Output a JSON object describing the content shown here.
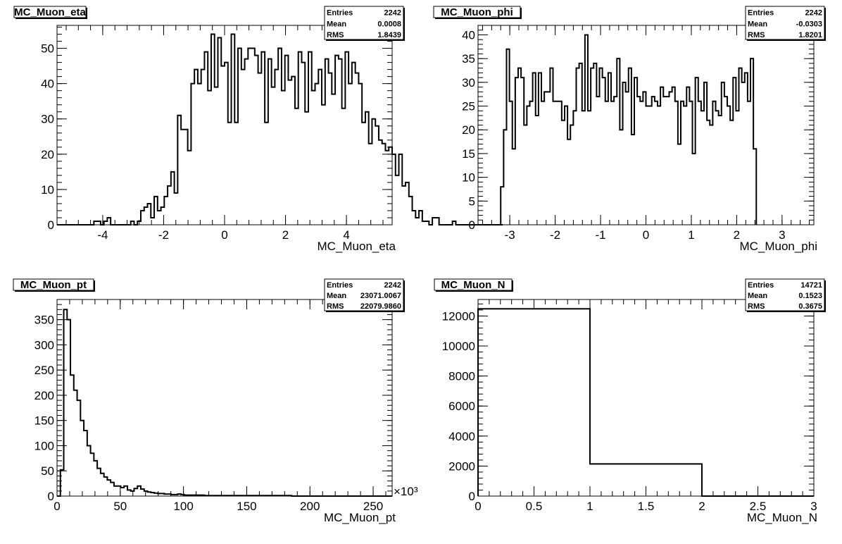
{
  "chart_data": [
    {
      "type": "histogram",
      "title": "MC_Muon_eta",
      "xlabel": "MC_Muon_eta",
      "xlim": [
        -5.5,
        5.5
      ],
      "ylim": [
        0,
        56.5
      ],
      "xticks": [
        -4,
        -2,
        0,
        2,
        4
      ],
      "yticks": [
        0,
        10,
        20,
        30,
        40,
        50
      ],
      "x_minor_step": 0.4,
      "y_minor_step": 2,
      "bin_start": -5.5,
      "bin_width": 0.11,
      "values": [
        0,
        0,
        0,
        0,
        0,
        0,
        0,
        0,
        0,
        0,
        0,
        1,
        1,
        0,
        1,
        2,
        0,
        0,
        0,
        0,
        0,
        0,
        1,
        0,
        1,
        4,
        5,
        6,
        2,
        8,
        4,
        5,
        8,
        11,
        15,
        9,
        31,
        27,
        27,
        21,
        40,
        44,
        40,
        44,
        49,
        38,
        54,
        39,
        53,
        45,
        46,
        29,
        54,
        29,
        50,
        44,
        47,
        50,
        50,
        48,
        43,
        49,
        29,
        47,
        39,
        44,
        50,
        38,
        48,
        41,
        42,
        33,
        49,
        46,
        32,
        49,
        38,
        40,
        44,
        34,
        47,
        43,
        37,
        48,
        47,
        33,
        49,
        40,
        46,
        43,
        40,
        29,
        32,
        23,
        30,
        28,
        24,
        23,
        21,
        22,
        20,
        14,
        20,
        11,
        12,
        8,
        4,
        2,
        4,
        1,
        1,
        0,
        2,
        2,
        0,
        0,
        0,
        0,
        1,
        0,
        0,
        0,
        0,
        0,
        0,
        0,
        0,
        0,
        0,
        0,
        0,
        0,
        0
      ],
      "stats": [
        {
          "label": "Entries",
          "value": "2242"
        },
        {
          "label": "Mean",
          "value": "0.0008"
        },
        {
          "label": "RMS",
          "value": "1.8439"
        }
      ]
    },
    {
      "type": "histogram",
      "title": "MC_Muon_phi",
      "xlabel": "MC_Muon_phi",
      "xlim": [
        -3.7,
        3.7
      ],
      "ylim": [
        0,
        42
      ],
      "xticks": [
        -3,
        -2,
        -1,
        0,
        1,
        2,
        3
      ],
      "yticks": [
        0,
        5,
        10,
        15,
        20,
        25,
        30,
        35,
        40
      ],
      "x_minor_step": 0.2,
      "y_minor_step": 1,
      "bin_start": -3.2,
      "bin_width": 0.064,
      "values": [
        8,
        20,
        37,
        26,
        16,
        31,
        33,
        31,
        21,
        25,
        26,
        32,
        23,
        32,
        26,
        28,
        28,
        33,
        26,
        26,
        26,
        22,
        25,
        18,
        21,
        24,
        33,
        34,
        24,
        40,
        24,
        33,
        34,
        27,
        33,
        31,
        26,
        32,
        26,
        27,
        35,
        20,
        30,
        28,
        33,
        19,
        31,
        27,
        26,
        28,
        25,
        25,
        27,
        26,
        25,
        29,
        27,
        27,
        28,
        29,
        26,
        17,
        26,
        25,
        29,
        26,
        15,
        31,
        26,
        24,
        30,
        22,
        21,
        26,
        24,
        23,
        30,
        27,
        25,
        22,
        31,
        24,
        33,
        30,
        32,
        26,
        35,
        16
      ],
      "stats": [
        {
          "label": "Entries",
          "value": "2242"
        },
        {
          "label": "Mean",
          "value": "-0.0303"
        },
        {
          "label": "RMS",
          "value": "1.8201"
        }
      ]
    },
    {
      "type": "histogram",
      "title": "MC_Muon_pt",
      "xlabel": "MC_Muon_pt",
      "x_exponent_label": "×10³",
      "xlim": [
        0,
        265
      ],
      "ylim": [
        0,
        390
      ],
      "xticks": [
        0,
        50,
        100,
        150,
        200,
        250
      ],
      "yticks": [
        0,
        50,
        100,
        150,
        200,
        250,
        300,
        350
      ],
      "x_minor_step": 10,
      "y_minor_step": 10,
      "bin_start": 0,
      "bin_width": 2.65,
      "values": [
        0,
        52,
        370,
        350,
        240,
        210,
        190,
        150,
        130,
        100,
        85,
        70,
        55,
        45,
        38,
        32,
        27,
        20,
        20,
        17,
        20,
        12,
        10,
        15,
        20,
        14,
        10,
        8,
        7,
        6,
        5,
        5,
        4,
        4,
        3,
        3,
        4,
        3,
        2,
        2,
        2,
        2,
        2,
        2,
        1,
        1,
        1,
        1,
        1,
        1,
        1,
        1,
        1,
        1,
        1,
        1,
        1,
        1,
        1,
        1,
        1,
        1,
        1,
        1,
        1,
        1,
        1,
        1,
        1,
        1,
        0,
        0,
        0,
        0,
        0,
        0,
        0,
        0,
        0,
        0,
        0,
        0,
        0,
        0,
        0,
        0,
        0,
        0,
        0,
        0,
        0,
        0,
        0,
        0,
        0,
        0,
        0,
        0,
        0,
        0
      ],
      "stats": [
        {
          "label": "Entries",
          "value": "2242"
        },
        {
          "label": "Mean",
          "value": "23071.0067"
        },
        {
          "label": "RMS",
          "value": "22079.9860"
        }
      ]
    },
    {
      "type": "histogram",
      "title": "MC_Muon_N",
      "xlabel": "MC_Muon_N",
      "xlim": [
        0,
        3
      ],
      "ylim": [
        0,
        13100
      ],
      "xticks": [
        0,
        0.5,
        1,
        1.5,
        2,
        2.5,
        3
      ],
      "yticks": [
        0,
        2000,
        4000,
        6000,
        8000,
        10000,
        12000
      ],
      "x_minor_step": 0.1,
      "y_minor_step": 400,
      "bin_start": 0,
      "bin_width": 1,
      "values": [
        12480,
        2145,
        0
      ],
      "stats": [
        {
          "label": "Entries",
          "value": "14721"
        },
        {
          "label": "Mean",
          "value": "0.1523"
        },
        {
          "label": "RMS",
          "value": "0.3675"
        }
      ]
    }
  ]
}
